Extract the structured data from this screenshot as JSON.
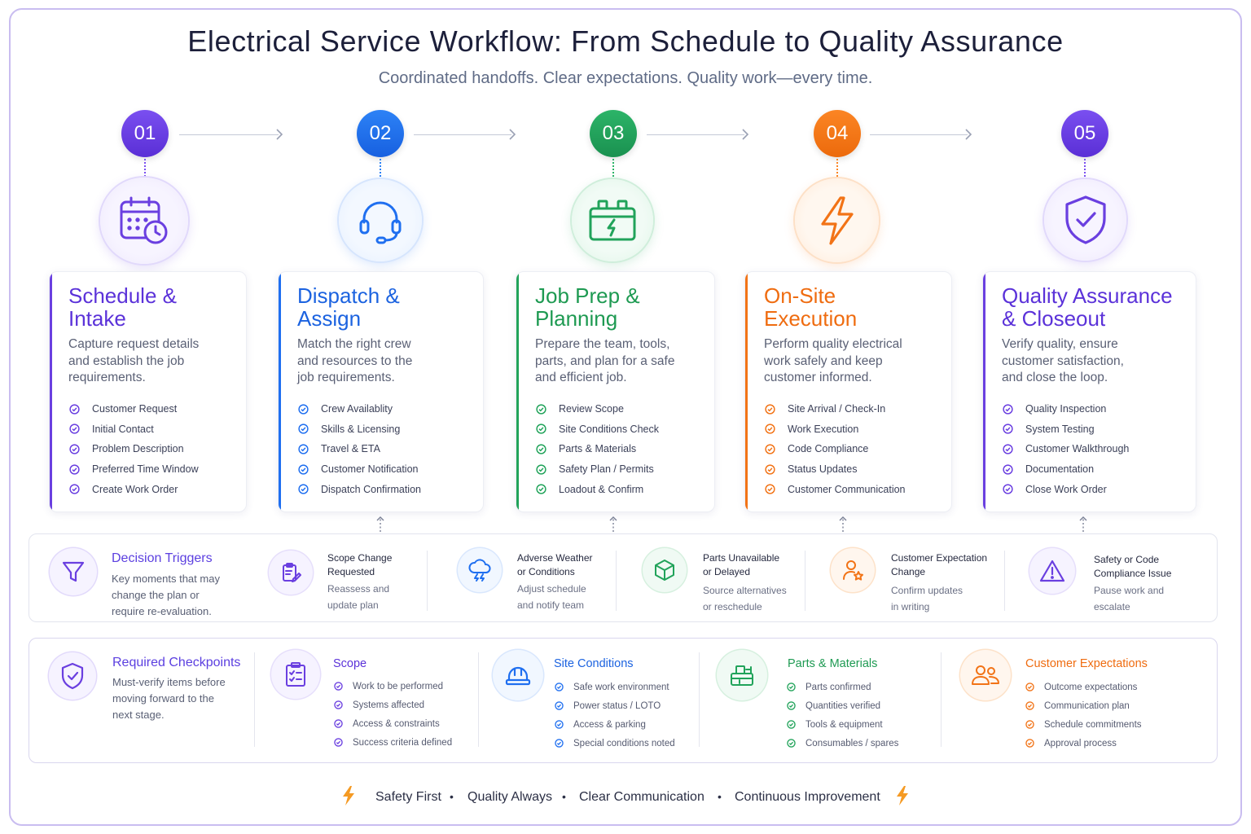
{
  "title": "Electrical Service Workflow: From Schedule to Quality Assurance",
  "subtitle": "Coordinated handoffs. Clear expectations. Quality work—every time.",
  "steps": [
    {
      "number": "01",
      "color": "#6a3fe0",
      "icon": "calendar-clock-icon",
      "title": "Schedule & Intake",
      "title_line1": "Schedule &",
      "title_line2": "Intake",
      "desc_line1": "Capture request details",
      "desc_line2": "and establish the job",
      "desc_line3": "requirements.",
      "items": [
        "Customer Request",
        "Initial Contact",
        "Problem Description",
        "Preferred Time Window",
        "Create Work Order"
      ]
    },
    {
      "number": "02",
      "color": "#1f6ff0",
      "icon": "headset-icon",
      "title": "Dispatch & Assign",
      "title_line1": "Dispatch &",
      "title_line2": "Assign",
      "desc_line1": "Match the right crew",
      "desc_line2": "and resources to the",
      "desc_line3": "job requirements.",
      "items": [
        "Crew Availablity",
        "Skills & Licensing",
        "Travel & ETA",
        "Customer Notification",
        "Dispatch Confirmation"
      ]
    },
    {
      "number": "03",
      "color": "#21a35a",
      "icon": "toolbox-icon",
      "title": "Job Prep & Planning",
      "title_line1": "Job Prep &",
      "title_line2": "Planning",
      "desc_line1": "Prepare the team, tools,",
      "desc_line2": "parts, and plan for a safe",
      "desc_line3": "and efficient job.",
      "items": [
        "Review Scope",
        "Site Conditions Check",
        "Parts & Materials",
        "Safety Plan / Permits",
        "Loadout & Confirm"
      ]
    },
    {
      "number": "04",
      "color": "#f27316",
      "icon": "lightning-bolt-icon",
      "title": "On-Site Execution",
      "title_line1": "On-Site",
      "title_line2": "Execution",
      "desc_line1": "Perform quality electrical",
      "desc_line2": "work safely and keep",
      "desc_line3": "customer informed.",
      "items": [
        "Site Arrival / Check-In",
        "Work Execution",
        "Code Compliance",
        "Status Updates",
        "Customer Communication"
      ]
    },
    {
      "number": "05",
      "color": "#6a3fe0",
      "icon": "shield-check-icon",
      "title": "Quality Assurance & Closeout",
      "title_line1": "Quality Assurance",
      "title_line2": "& Closeout",
      "desc_line1": "Verify quality, ensure",
      "desc_line2": "customer satisfaction,",
      "desc_line3": "and close the loop.",
      "items": [
        "Quality Inspection",
        "System Testing",
        "Customer Walkthrough",
        "Documentation",
        "Close Work Order"
      ]
    }
  ],
  "decision_triggers": {
    "icon": "funnel-icon",
    "title": "Decision Triggers",
    "desc_line1": "Key moments that may",
    "desc_line2": "change the plan or",
    "desc_line3": "require re-evaluation.",
    "items": [
      {
        "icon": "clipboard-edit-icon",
        "title_line1": "Scope Change",
        "title_line2": "Requested",
        "desc_line1": "Reassess and",
        "desc_line2": "update plan"
      },
      {
        "icon": "storm-cloud-icon",
        "title_line1": "Adverse Weather",
        "title_line2": "or Conditions",
        "desc_line1": "Adjust schedule",
        "desc_line2": "and notify team"
      },
      {
        "icon": "package-box-icon",
        "title_line1": "Parts Unavailable",
        "title_line2": "or Delayed",
        "desc_line1": "Source alternatives",
        "desc_line2": "or reschedule"
      },
      {
        "icon": "user-star-icon",
        "title_line1": "Customer Expectation",
        "title_line2": "Change",
        "desc_line1": "Confirm updates",
        "desc_line2": "in writing"
      },
      {
        "icon": "warning-triangle-icon",
        "title_line1": "Safety or Code",
        "title_line2": "Compliance Issue",
        "desc_line1": "Pause work and",
        "desc_line2": "escalate"
      }
    ]
  },
  "required_checkpoints": {
    "icon": "shield-check-icon",
    "title": "Required Checkpoints",
    "desc_line1": "Must-verify items before",
    "desc_line2": "moving forward to the",
    "desc_line3": "next stage.",
    "groups": [
      {
        "icon": "checklist-clipboard-icon",
        "color": "#6a3fe0",
        "title": "Scope",
        "items": [
          "Work to be performed",
          "Systems affected",
          "Access & constraints",
          "Success criteria defined"
        ]
      },
      {
        "icon": "hard-hat-icon",
        "color": "#1f6ff0",
        "title": "Site Conditions",
        "items": [
          "Safe work environment",
          "Power status / LOTO",
          "Access & parking",
          "Special conditions noted"
        ]
      },
      {
        "icon": "parts-cart-icon",
        "color": "#21a35a",
        "title": "Parts & Materials",
        "items": [
          "Parts confirmed",
          "Quantities verified",
          "Tools & equipment",
          "Consumables / spares"
        ]
      },
      {
        "icon": "people-group-icon",
        "color": "#f27316",
        "title": "Customer Expectations",
        "items": [
          "Outcome expectations",
          "Communication plan",
          "Schedule commitments",
          "Approval process"
        ]
      }
    ]
  },
  "footer": {
    "items": [
      "Safety First",
      "Quality Always",
      "Clear Communication",
      "Continuous Improvement"
    ],
    "separator": "•",
    "icon": "lightning-bolt-icon",
    "accent": "#f59a23"
  }
}
